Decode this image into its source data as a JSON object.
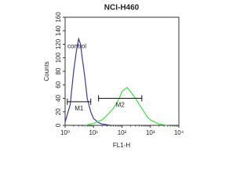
{
  "chart_data": {
    "type": "histogram-overlay",
    "title": "NCI-H460",
    "x_label": "FL1-H",
    "y_label": "Counts",
    "log_x": true,
    "xlim": [
      1,
      10000
    ],
    "xticks": [
      {
        "value": 1,
        "label": "10⁰"
      },
      {
        "value": 10,
        "label": "10¹"
      },
      {
        "value": 100,
        "label": "10²"
      },
      {
        "value": 1000,
        "label": "10³"
      },
      {
        "value": 10000,
        "label": "10⁴"
      }
    ],
    "ylim": [
      0,
      160
    ],
    "yticks": [
      0,
      20,
      40,
      60,
      80,
      100,
      120,
      140,
      160
    ],
    "series": [
      {
        "name": "control",
        "color": "#3b3b9e",
        "x": [
          1,
          1.5,
          2,
          2.5,
          3,
          3.5,
          4,
          5,
          6,
          8,
          10,
          15,
          20,
          40
        ],
        "values": [
          5,
          30,
          80,
          110,
          128,
          120,
          100,
          70,
          40,
          20,
          10,
          4,
          2,
          0
        ]
      },
      {
        "color": "#44dd44",
        "x": [
          5,
          10,
          20,
          30,
          50,
          80,
          100,
          150,
          200,
          300,
          500,
          800,
          1000,
          2000,
          4000
        ],
        "values": [
          0,
          3,
          8,
          15,
          25,
          40,
          50,
          56,
          50,
          40,
          25,
          12,
          8,
          2,
          0
        ]
      }
    ],
    "gates": [
      {
        "label": "M1",
        "range": [
          1.2,
          8
        ],
        "level": 35
      },
      {
        "label": "M2",
        "range": [
          15,
          500
        ],
        "level": 40
      }
    ]
  }
}
